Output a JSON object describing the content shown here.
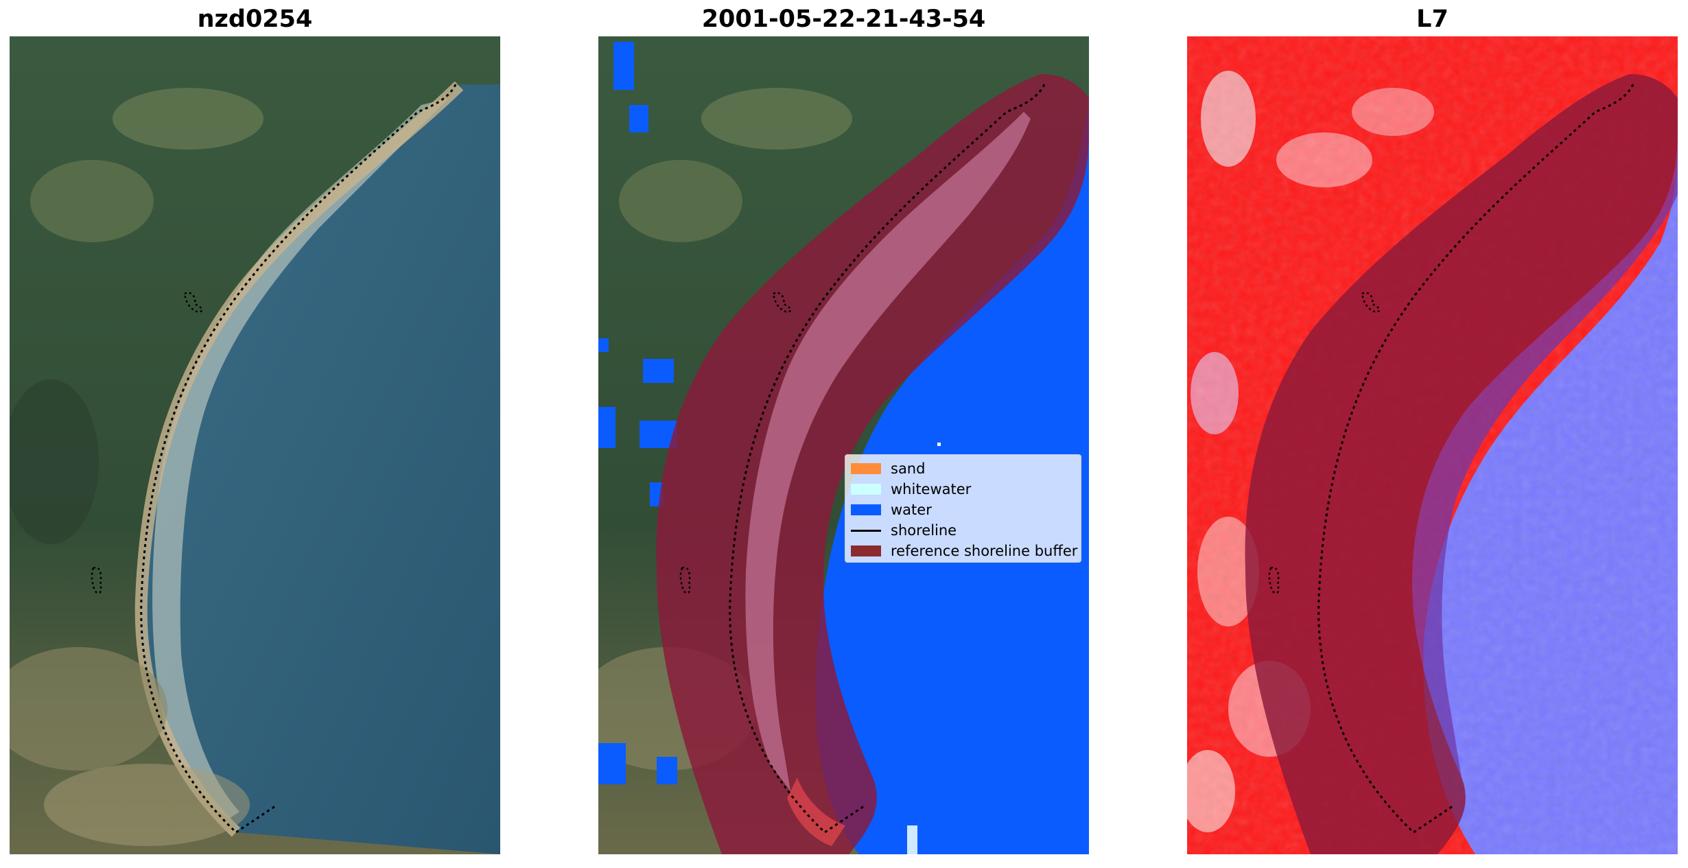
{
  "panels": [
    {
      "title": "nzd0254"
    },
    {
      "title": "2001-05-22-21-43-54"
    },
    {
      "title": "L7"
    }
  ],
  "legend": {
    "items": [
      {
        "label": "sand",
        "color": "#ff8c3a",
        "kind": "patch"
      },
      {
        "label": "whitewater",
        "color": "#ccffff",
        "kind": "patch"
      },
      {
        "label": "water",
        "color": "#0a5cff",
        "kind": "patch"
      },
      {
        "label": "shoreline",
        "color": "#000000",
        "kind": "line"
      },
      {
        "label": "reference shoreline buffer",
        "color": "#8b2a2f",
        "kind": "patch"
      }
    ]
  },
  "colors": {
    "land_dark": "#2f4a35",
    "land_green": "#567048",
    "sea": "#2e5f78",
    "water_class": "#0a5cff",
    "buffer": "#8b1a3a",
    "index_positive": "#ff1a1a",
    "index_negative": "#7a7aff"
  }
}
